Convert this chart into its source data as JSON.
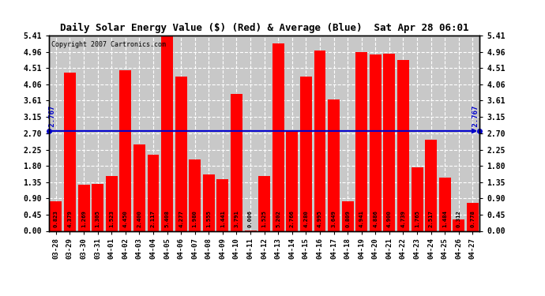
{
  "title": "Daily Solar Energy Value ($) (Red) & Average (Blue)  Sat Apr 28 06:01",
  "copyright": "Copyright 2007 Cartronics.com",
  "average": 2.767,
  "ylim": [
    0.0,
    5.41
  ],
  "yticks": [
    0.0,
    0.45,
    0.9,
    1.35,
    1.8,
    2.25,
    2.7,
    3.15,
    3.61,
    4.06,
    4.51,
    4.96,
    5.41
  ],
  "bar_color": "#FF0000",
  "avg_color": "#0000CC",
  "background_color": "#FFFFFF",
  "plot_bg_color": "#C8C8C8",
  "grid_color": "#FFFFFF",
  "categories": [
    "03-28",
    "03-29",
    "03-30",
    "03-31",
    "04-01",
    "04-02",
    "04-03",
    "04-04",
    "04-05",
    "04-06",
    "04-07",
    "04-08",
    "04-09",
    "04-10",
    "04-11",
    "04-12",
    "04-13",
    "04-14",
    "04-15",
    "04-16",
    "04-17",
    "04-18",
    "04-19",
    "04-20",
    "04-21",
    "04-22",
    "04-23",
    "04-24",
    "04-25",
    "04-26",
    "04-27"
  ],
  "values": [
    0.823,
    4.379,
    1.269,
    1.305,
    1.523,
    4.45,
    2.4,
    2.117,
    5.408,
    4.277,
    1.98,
    1.555,
    1.441,
    3.791,
    0.006,
    1.525,
    5.202,
    2.766,
    4.28,
    4.995,
    3.649,
    0.809,
    4.941,
    4.886,
    4.9,
    4.739,
    1.765,
    2.517,
    1.484,
    0.312,
    0.778
  ]
}
